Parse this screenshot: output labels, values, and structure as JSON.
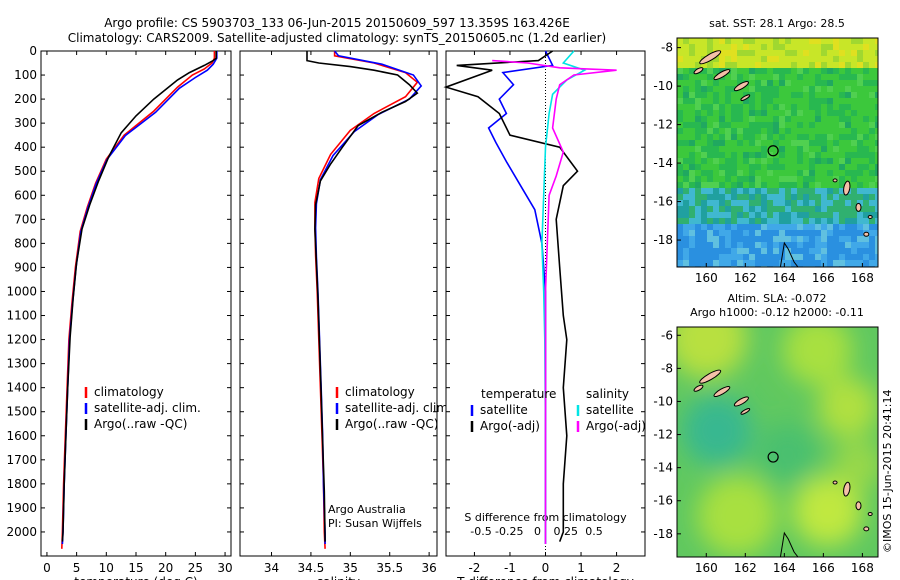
{
  "header": {
    "line1": "Argo profile: CS 5903703_133 06-Jun-2015 20150609_597 13.359S 163.426E",
    "line2": "Climatology: CARS2009. Satellite-adjusted climatology: synTS_20150605.nc (1.2d earlier)"
  },
  "colors": {
    "climatology": "#ff0000",
    "satellite": "#0000ff",
    "argo": "#000000",
    "sal_satellite": "#00e5e5",
    "sal_argo": "#ff00ff"
  },
  "depth_axis": {
    "ylim": [
      0,
      2100
    ],
    "ticks": [
      0,
      100,
      200,
      300,
      400,
      500,
      600,
      700,
      800,
      900,
      1000,
      1100,
      1200,
      1300,
      1400,
      1500,
      1600,
      1700,
      1800,
      1900,
      2000
    ]
  },
  "chart_data": [
    {
      "type": "line",
      "id": "temperature",
      "xlabel": "temperature (deg C)",
      "xlim": [
        -1,
        31
      ],
      "xticks": [
        0,
        5,
        10,
        15,
        20,
        25,
        30
      ],
      "legend": {
        "placement": "lower-center",
        "items": [
          "climatology",
          "satellite-adj. clim.",
          "Argo(..raw -QC)"
        ]
      },
      "series": [
        {
          "name": "climatology",
          "color": "#ff0000",
          "points": [
            [
              28.2,
              0
            ],
            [
              28.2,
              30
            ],
            [
              27.8,
              50
            ],
            [
              26.5,
              75
            ],
            [
              24.5,
              100
            ],
            [
              22,
              150
            ],
            [
              18,
              250
            ],
            [
              13,
              350
            ],
            [
              10,
              450
            ],
            [
              8.2,
              550
            ],
            [
              6.8,
              650
            ],
            [
              5.6,
              750
            ],
            [
              4.8,
              900
            ],
            [
              4.2,
              1050
            ],
            [
              3.7,
              1200
            ],
            [
              3.4,
              1400
            ],
            [
              3.1,
              1600
            ],
            [
              2.8,
              1800
            ],
            [
              2.6,
              2000
            ],
            [
              2.5,
              2070
            ]
          ]
        },
        {
          "name": "satellite-adj. clim.",
          "color": "#0000ff",
          "points": [
            [
              28.6,
              0
            ],
            [
              28.6,
              30
            ],
            [
              28,
              55
            ],
            [
              27,
              80
            ],
            [
              25,
              110
            ],
            [
              22.3,
              155
            ],
            [
              18.3,
              255
            ],
            [
              13.2,
              352
            ],
            [
              10.1,
              452
            ],
            [
              8.3,
              552
            ],
            [
              6.9,
              652
            ],
            [
              5.7,
              752
            ],
            [
              4.9,
              902
            ],
            [
              4.3,
              1052
            ],
            [
              3.8,
              1202
            ],
            [
              3.5,
              1402
            ],
            [
              3.2,
              1602
            ],
            [
              2.9,
              1802
            ],
            [
              2.7,
              2002
            ],
            [
              2.6,
              2050
            ]
          ]
        },
        {
          "name": "Argo(..raw -QC)",
          "color": "#000000",
          "points": [
            [
              28.5,
              0
            ],
            [
              28.5,
              30
            ],
            [
              28,
              40
            ],
            [
              26.5,
              60
            ],
            [
              24,
              90
            ],
            [
              22,
              120
            ],
            [
              18,
              200
            ],
            [
              15,
              270
            ],
            [
              12.5,
              340
            ],
            [
              10.4,
              440
            ],
            [
              8.7,
              540
            ],
            [
              7.2,
              640
            ],
            [
              5.9,
              740
            ],
            [
              5.0,
              880
            ],
            [
              4.4,
              1030
            ],
            [
              3.9,
              1190
            ],
            [
              3.5,
              1400
            ],
            [
              3.2,
              1600
            ],
            [
              2.9,
              1800
            ],
            [
              2.7,
              2000
            ],
            [
              2.6,
              2040
            ]
          ]
        }
      ]
    },
    {
      "type": "line",
      "id": "salinity",
      "xlabel": "salinity",
      "xlim": [
        33.6,
        36.1
      ],
      "xticks": [
        34,
        34.5,
        35,
        35.5,
        36
      ],
      "annotation_lines": [
        "Argo Australia",
        "PI: Susan Wijffels"
      ],
      "legend": {
        "placement": "lower-right",
        "items": [
          "climatology",
          "satellite-adj. clim.",
          "Argo(..raw -QC)"
        ]
      },
      "series": [
        {
          "name": "climatology",
          "color": "#ff0000",
          "points": [
            [
              34.8,
              0
            ],
            [
              34.8,
              20
            ],
            [
              35.3,
              50
            ],
            [
              35.7,
              90
            ],
            [
              35.85,
              130
            ],
            [
              35.7,
              190
            ],
            [
              35.3,
              260
            ],
            [
              35.0,
              330
            ],
            [
              34.75,
              430
            ],
            [
              34.6,
              530
            ],
            [
              34.55,
              630
            ],
            [
              34.55,
              730
            ],
            [
              34.56,
              850
            ],
            [
              34.58,
              1000
            ],
            [
              34.6,
              1200
            ],
            [
              34.62,
              1400
            ],
            [
              34.64,
              1600
            ],
            [
              34.66,
              1800
            ],
            [
              34.67,
              2000
            ],
            [
              34.68,
              2070
            ]
          ]
        },
        {
          "name": "satellite-adj. clim.",
          "color": "#0000ff",
          "points": [
            [
              34.8,
              0
            ],
            [
              34.85,
              20
            ],
            [
              35.4,
              55
            ],
            [
              35.8,
              100
            ],
            [
              35.9,
              145
            ],
            [
              35.75,
              200
            ],
            [
              35.35,
              265
            ],
            [
              35.05,
              335
            ],
            [
              34.78,
              435
            ],
            [
              34.62,
              535
            ],
            [
              34.57,
              635
            ],
            [
              34.56,
              735
            ],
            [
              34.57,
              855
            ],
            [
              34.59,
              1005
            ],
            [
              34.61,
              1205
            ],
            [
              34.63,
              1405
            ],
            [
              34.65,
              1605
            ],
            [
              34.66,
              1805
            ],
            [
              34.68,
              2005
            ],
            [
              34.68,
              2050
            ]
          ]
        },
        {
          "name": "Argo(..raw -QC)",
          "color": "#000000",
          "points": [
            [
              34.45,
              0
            ],
            [
              34.45,
              40
            ],
            [
              34.6,
              50
            ],
            [
              35.0,
              65
            ],
            [
              35.3,
              80
            ],
            [
              35.6,
              100
            ],
            [
              35.75,
              140
            ],
            [
              35.85,
              175
            ],
            [
              35.7,
              210
            ],
            [
              35.4,
              255
            ],
            [
              35.1,
              310
            ],
            [
              34.9,
              400
            ],
            [
              34.75,
              470
            ],
            [
              34.62,
              540
            ],
            [
              34.56,
              640
            ],
            [
              34.55,
              740
            ],
            [
              34.57,
              880
            ],
            [
              34.59,
              1030
            ],
            [
              34.61,
              1230
            ],
            [
              34.63,
              1430
            ],
            [
              34.65,
              1630
            ],
            [
              34.67,
              1830
            ],
            [
              34.68,
              2040
            ]
          ]
        }
      ]
    },
    {
      "type": "line",
      "id": "difference",
      "xlabel": "T difference from climatology",
      "xlim": [
        -2.8,
        2.8
      ],
      "xticks": [
        -2,
        -1,
        0,
        1,
        2
      ],
      "top_label": "S difference from climatology",
      "top_ticks": [
        "-0.5",
        "-0.25",
        "0",
        "0.25",
        "0.5"
      ],
      "legend": {
        "placement": "lower-center",
        "temperature_title": "temperature",
        "salinity_title": "salinity",
        "items": [
          "satellite",
          "Argo(-adj)",
          "satellite",
          "Argo(-adj)"
        ]
      },
      "series": [
        {
          "name": "temperature satellite",
          "color": "#0000ff",
          "points": [
            [
              0,
              0
            ],
            [
              0.2,
              60
            ],
            [
              -1.2,
              90
            ],
            [
              -0.9,
              140
            ],
            [
              -1.3,
              200
            ],
            [
              -1.1,
              260
            ],
            [
              -1.6,
              320
            ],
            [
              -1.4,
              380
            ],
            [
              -1.1,
              460
            ],
            [
              -0.7,
              560
            ],
            [
              -0.3,
              660
            ],
            [
              -0.1,
              800
            ],
            [
              0,
              1000
            ],
            [
              0,
              2050
            ]
          ]
        },
        {
          "name": "temperature Argo(-adj)",
          "color": "#000000",
          "points": [
            [
              0.2,
              0
            ],
            [
              -0.2,
              40
            ],
            [
              -2.5,
              60
            ],
            [
              -1.5,
              80
            ],
            [
              -2.8,
              150
            ],
            [
              -1.9,
              190
            ],
            [
              -1.3,
              260
            ],
            [
              -1.0,
              350
            ],
            [
              0.4,
              400
            ],
            [
              0.7,
              460
            ],
            [
              0.9,
              500
            ],
            [
              0.5,
              560
            ],
            [
              0.3,
              700
            ],
            [
              0.4,
              900
            ],
            [
              0.5,
              1100
            ],
            [
              0.6,
              1200
            ],
            [
              0.5,
              1400
            ],
            [
              0.6,
              1600
            ],
            [
              0.5,
              1800
            ],
            [
              0.5,
              2000
            ],
            [
              0.4,
              2040
            ]
          ]
        },
        {
          "name": "salinity satellite",
          "color": "#00e5e5",
          "points": [
            [
              0.8,
              0
            ],
            [
              0.5,
              50
            ],
            [
              1.1,
              80
            ],
            [
              0.6,
              120
            ],
            [
              0.2,
              180
            ],
            [
              0.1,
              260
            ],
            [
              0,
              400
            ],
            [
              -0.05,
              600
            ],
            [
              -0.1,
              800
            ],
            [
              -0.05,
              1000
            ],
            [
              -0.02,
              1200
            ],
            [
              0,
              1600
            ],
            [
              0,
              2050
            ]
          ]
        },
        {
          "name": "salinity Argo(-adj)",
          "color": "#ff00ff",
          "points": [
            [
              -1.5,
              40
            ],
            [
              -0.5,
              50
            ],
            [
              0.4,
              70
            ],
            [
              2.0,
              80
            ],
            [
              0.8,
              100
            ],
            [
              0.4,
              140
            ],
            [
              0.3,
              200
            ],
            [
              0.2,
              320
            ],
            [
              0.5,
              420
            ],
            [
              0.3,
              520
            ],
            [
              0.1,
              600
            ],
            [
              0.05,
              800
            ],
            [
              0,
              1000
            ],
            [
              0,
              2050
            ]
          ]
        }
      ]
    },
    {
      "type": "heatmap",
      "id": "sst-map",
      "title": "sat. SST: 28.1 Argo: 28.5",
      "xlim": [
        158.5,
        168.8
      ],
      "ylim": [
        -19.4,
        -7.5
      ],
      "xticks": [
        160,
        162,
        164,
        166,
        168
      ],
      "yticks": [
        -8,
        -10,
        -12,
        -14,
        -16,
        -18
      ],
      "marker": {
        "lon": 163.426,
        "lat": -13.359
      }
    },
    {
      "type": "heatmap",
      "id": "sla-map",
      "title_lines": [
        "Altim. SLA: -0.072",
        "Argo h1000: -0.12 h2000: -0.11"
      ],
      "xlim": [
        158.5,
        168.8
      ],
      "ylim": [
        -19.4,
        -5.5
      ],
      "xticks": [
        160,
        162,
        164,
        166,
        168
      ],
      "yticks": [
        -6,
        -8,
        -10,
        -12,
        -14,
        -16,
        -18
      ],
      "marker": {
        "lon": 163.426,
        "lat": -13.359
      }
    }
  ],
  "side_stamp": "©IMOS 15-Jun-2015 20:41:14"
}
